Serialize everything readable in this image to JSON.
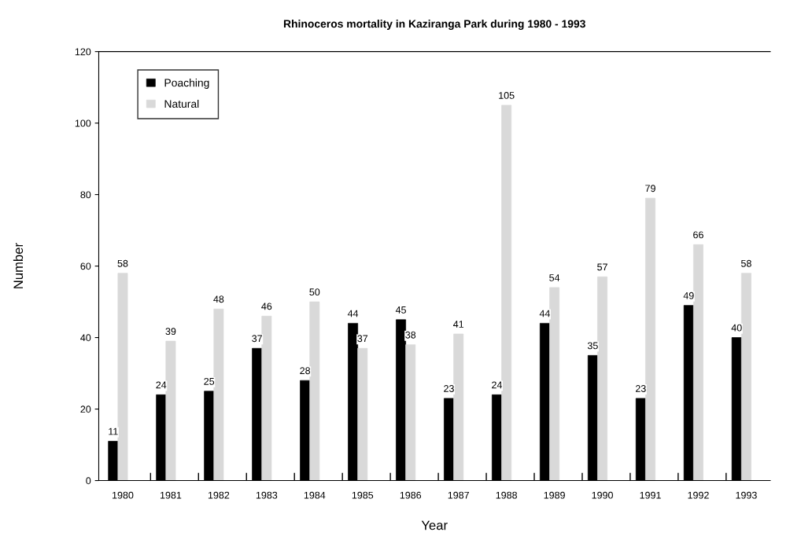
{
  "chart_data": {
    "type": "bar",
    "title": "Rhinoceros mortality in Kaziranga Park during 1980 - 1993",
    "xlabel": "Year",
    "ylabel": "Number",
    "categories": [
      "1980",
      "1981",
      "1982",
      "1983",
      "1984",
      "1985",
      "1986",
      "1987",
      "1988",
      "1989",
      "1990",
      "1991",
      "1992",
      "1993"
    ],
    "series": [
      {
        "name": "Poaching",
        "color": "#000000",
        "values": [
          11,
          24,
          25,
          37,
          28,
          44,
          45,
          23,
          24,
          44,
          35,
          23,
          49,
          40
        ]
      },
      {
        "name": "Natural",
        "color": "#d9d9d9",
        "values": [
          58,
          39,
          48,
          46,
          50,
          37,
          38,
          41,
          105,
          54,
          57,
          79,
          66,
          58
        ]
      }
    ],
    "ylim": [
      0,
      120
    ],
    "yticks": [
      0,
      20,
      40,
      60,
      80,
      100,
      120
    ],
    "grid": false,
    "legend": "top left",
    "data_labels": true
  }
}
